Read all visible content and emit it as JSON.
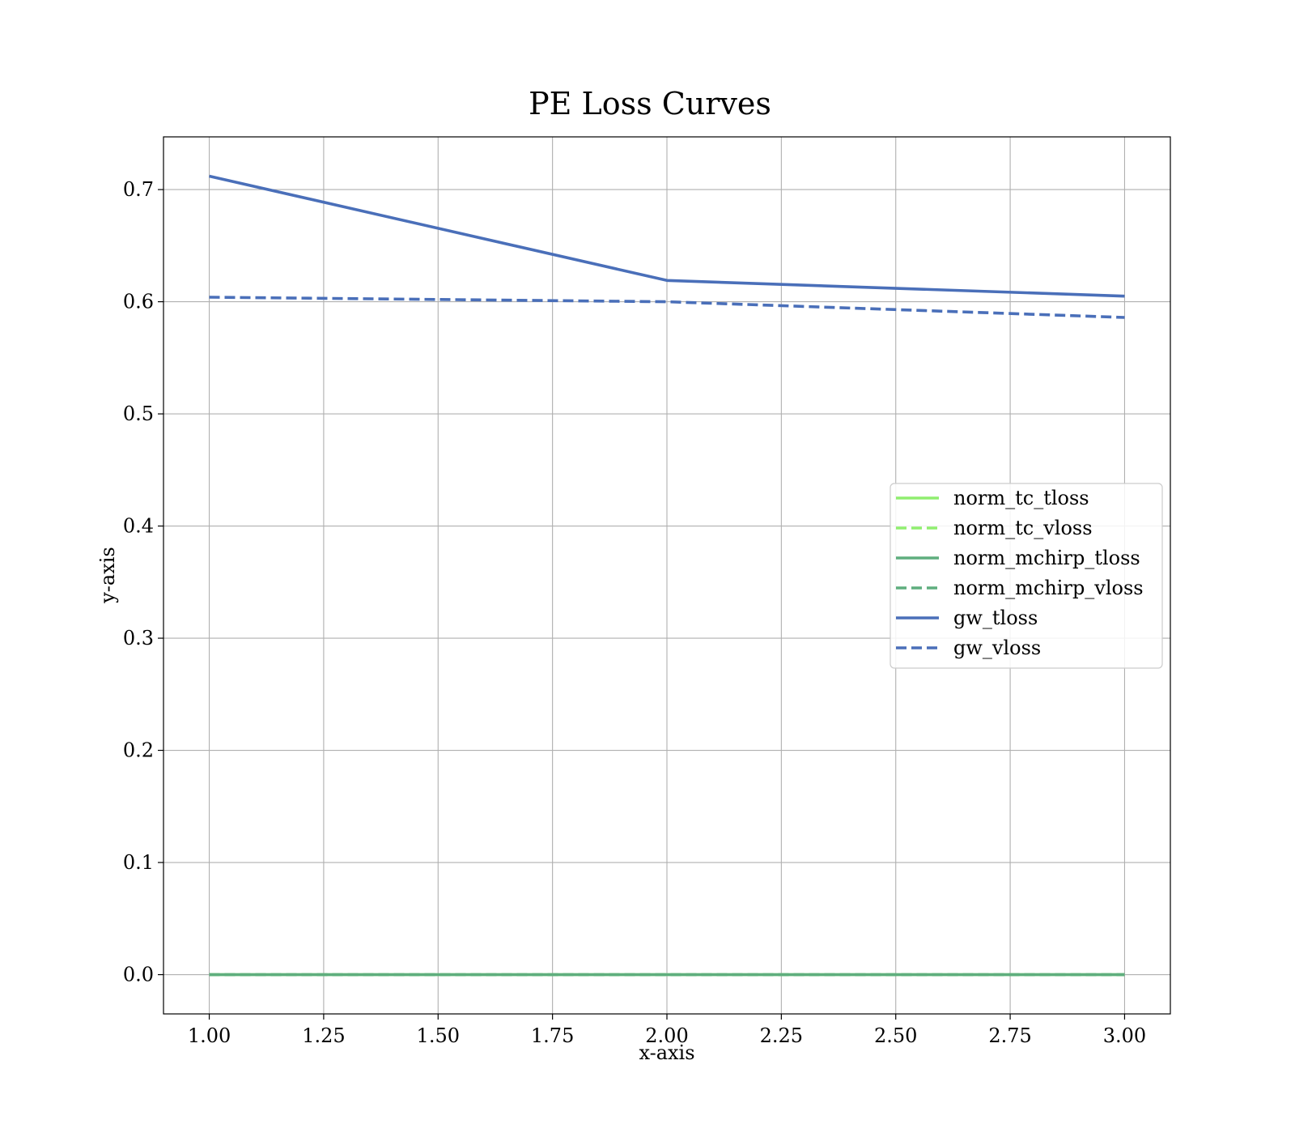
{
  "chart_data": {
    "type": "line",
    "title": "PE Loss Curves",
    "xlabel": "x-axis",
    "ylabel": "y-axis",
    "xlim": [
      0.9,
      3.1
    ],
    "ylim": [
      -0.035,
      0.747
    ],
    "xticks": [
      1.0,
      1.25,
      1.5,
      1.75,
      2.0,
      2.25,
      2.5,
      2.75,
      3.0
    ],
    "xtick_labels": [
      "1.00",
      "1.25",
      "1.50",
      "1.75",
      "2.00",
      "2.25",
      "2.50",
      "2.75",
      "3.00"
    ],
    "yticks": [
      0.0,
      0.1,
      0.2,
      0.3,
      0.4,
      0.5,
      0.6,
      0.7
    ],
    "ytick_labels": [
      "0.0",
      "0.1",
      "0.2",
      "0.3",
      "0.4",
      "0.5",
      "0.6",
      "0.7"
    ],
    "grid": true,
    "legend_position": "center-right",
    "x": [
      1,
      2,
      3
    ],
    "series": [
      {
        "name": "norm_tc_tloss",
        "values": [
          0.0,
          0.0,
          0.0
        ],
        "color": "#90ee70",
        "dash": "solid"
      },
      {
        "name": "norm_tc_vloss",
        "values": [
          0.0,
          0.0,
          0.0
        ],
        "color": "#90ee70",
        "dash": "dashed"
      },
      {
        "name": "norm_mchirp_tloss",
        "values": [
          0.0,
          0.0,
          0.0
        ],
        "color": "#5fae7e",
        "dash": "solid"
      },
      {
        "name": "norm_mchirp_vloss",
        "values": [
          0.0,
          0.0,
          0.0
        ],
        "color": "#5fae7e",
        "dash": "dashed"
      },
      {
        "name": "gw_tloss",
        "values": [
          0.712,
          0.619,
          0.605
        ],
        "color": "#4a6fb9",
        "dash": "solid"
      },
      {
        "name": "gw_vloss",
        "values": [
          0.604,
          0.6,
          0.586
        ],
        "color": "#4a6fb9",
        "dash": "dashed"
      }
    ]
  }
}
